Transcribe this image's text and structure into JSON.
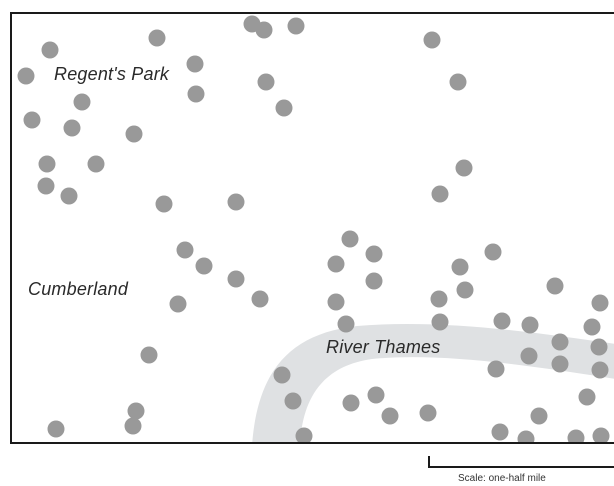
{
  "labels": {
    "regents_park": "Regent's Park",
    "cumberland": "Cumberland",
    "river_thames": "River Thames"
  },
  "scale": {
    "text": "Scale: one-half mile"
  },
  "colors": {
    "dot": "#999999",
    "river": "#dfe1e3",
    "border": "#1a1a1a"
  }
}
